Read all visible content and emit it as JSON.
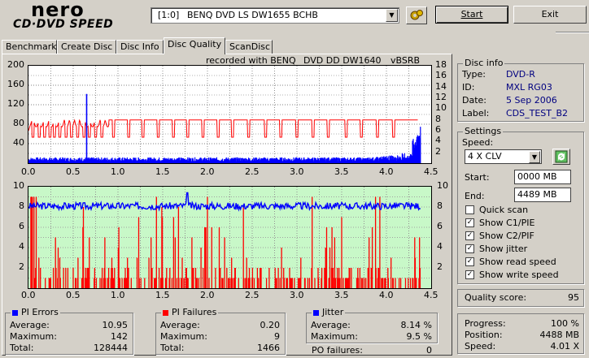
{
  "app": {
    "logo_top": "nero",
    "logo_bottom": "CD·DVD SPEED"
  },
  "drive": {
    "id": "[1:0]",
    "name": "BENQ DVD LS DW1655 BCHB"
  },
  "buttons": {
    "start": "Start",
    "exit": "Exit"
  },
  "tabs": [
    "Benchmark",
    "Create Disc",
    "Disc Info",
    "Disc Quality",
    "ScanDisc"
  ],
  "recorded": {
    "prefix": "recorded with BENQ",
    "drive": "DVD DD DW1640",
    "fw": "vBSRB"
  },
  "top_chart": {
    "left_ticks": [
      "200",
      "160",
      "120",
      "80",
      "40"
    ],
    "right_ticks": [
      "18",
      "16",
      "14",
      "12",
      "10",
      "8",
      "6",
      "4",
      "2"
    ],
    "x_ticks": [
      "0.0",
      "0.5",
      "1.0",
      "1.5",
      "2.0",
      "2.5",
      "3.0",
      "3.5",
      "4.0",
      "4.5"
    ]
  },
  "bottom_chart": {
    "left_ticks": [
      "10",
      "8",
      "6",
      "4",
      "2"
    ],
    "right_ticks": [
      "10",
      "8",
      "6",
      "4",
      "2"
    ],
    "x_ticks": [
      "0.0",
      "0.5",
      "1.0",
      "1.5",
      "2.0",
      "2.5",
      "3.0",
      "3.5",
      "4.0",
      "4.5"
    ]
  },
  "chart_data": [
    {
      "type": "line",
      "x_range": [
        0,
        4.5
      ],
      "y_left_range": [
        0,
        200
      ],
      "y_right_range": [
        0,
        18
      ],
      "series": [
        {
          "name": "PI Errors",
          "color": "#0000ff",
          "summary": {
            "average": 10.95,
            "maximum": 142,
            "spike_x": 0.65
          }
        },
        {
          "name": "Read speed",
          "color": "#ff0000",
          "approx_level": 8.0
        }
      ]
    },
    {
      "type": "bar",
      "x_range": [
        0,
        4.5
      ],
      "y_range": [
        0,
        10
      ],
      "series": [
        {
          "name": "PI Failures",
          "color": "#ff0000",
          "max": 9
        },
        {
          "name": "Jitter",
          "color": "#0000ff",
          "approx_level": 8.1
        }
      ]
    }
  ],
  "disc_info": {
    "title": "Disc info",
    "type_label": "Type:",
    "type": "DVD-R",
    "id_label": "ID:",
    "id": "MXL RG03",
    "date_label": "Date:",
    "date": "5 Sep 2006",
    "label_label": "Label:",
    "label": "CDS_TEST_B2"
  },
  "settings": {
    "title": "Settings",
    "speed_label": "Speed:",
    "speed": "4 X CLV",
    "start_label": "Start:",
    "start": "0000 MB",
    "end_label": "End:",
    "end": "4489 MB",
    "checks": [
      {
        "label": "Quick scan",
        "checked": false
      },
      {
        "label": "Show C1/PIE",
        "checked": true
      },
      {
        "label": "Show C2/PIF",
        "checked": true
      },
      {
        "label": "Show jitter",
        "checked": true
      },
      {
        "label": "Show read speed",
        "checked": true
      },
      {
        "label": "Show write speed",
        "checked": true
      }
    ]
  },
  "quality": {
    "label": "Quality score:",
    "value": "95"
  },
  "progress": {
    "progress_label": "Progress:",
    "progress": "100 %",
    "position_label": "Position:",
    "position": "4488 MB",
    "speed_label": "Speed:",
    "speed": "4.01 X"
  },
  "pi_errors": {
    "title": "PI Errors",
    "avg_label": "Average:",
    "avg": "10.95",
    "max_label": "Maximum:",
    "max": "142",
    "total_label": "Total:",
    "total": "128444"
  },
  "pi_failures": {
    "title": "PI Failures",
    "avg_label": "Average:",
    "avg": "0.20",
    "max_label": "Maximum:",
    "max": "9",
    "total_label": "Total:",
    "total": "1466"
  },
  "jitter": {
    "title": "Jitter",
    "avg_label": "Average:",
    "avg": "8.14 %",
    "max_label": "Maximum:",
    "max": "9.5 %",
    "po_label": "PO failures:",
    "po": "0"
  }
}
